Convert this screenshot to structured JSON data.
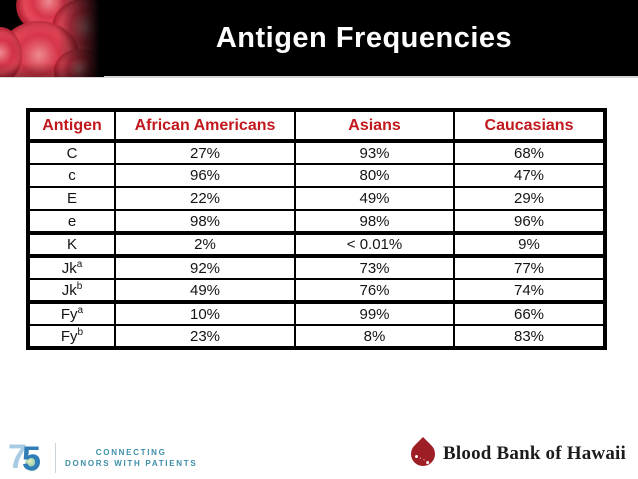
{
  "header": {
    "title": "Antigen Frequencies"
  },
  "table": {
    "columns": [
      "Antigen",
      "African Americans",
      "Asians",
      "Caucasians"
    ],
    "rows": [
      {
        "antigen": "C",
        "antigen_sup": "",
        "values": [
          "27%",
          "93%",
          "68%"
        ]
      },
      {
        "antigen": "c",
        "antigen_sup": "",
        "values": [
          "96%",
          "80%",
          "47%"
        ]
      },
      {
        "antigen": "E",
        "antigen_sup": "",
        "values": [
          "22%",
          "49%",
          "29%"
        ]
      },
      {
        "antigen": "e",
        "antigen_sup": "",
        "values": [
          "98%",
          "98%",
          "96%"
        ]
      },
      {
        "antigen": "K",
        "antigen_sup": "",
        "values": [
          "2%",
          "< 0.01%",
          "9%"
        ]
      },
      {
        "antigen": "Jk",
        "antigen_sup": "a",
        "values": [
          "92%",
          "73%",
          "77%"
        ]
      },
      {
        "antigen": "Jk",
        "antigen_sup": "b",
        "values": [
          "49%",
          "76%",
          "74%"
        ]
      },
      {
        "antigen": "Fy",
        "antigen_sup": "a",
        "values": [
          "10%",
          "99%",
          "66%"
        ]
      },
      {
        "antigen": "Fy",
        "antigen_sup": "b",
        "values": [
          "23%",
          "8%",
          "83%"
        ]
      }
    ]
  },
  "footer": {
    "anniversary_digit_7": "7",
    "anniversary_digit_5": "5",
    "tagline_line1": "CONNECTING",
    "tagline_line2": "DONORS WITH PATIENTS",
    "org_name": "Blood Bank of Hawaii"
  },
  "colors": {
    "header_text_red": "#C1181D",
    "bar_black": "#000000",
    "title_white": "#FFFFFF",
    "tagline_teal": "#3D8EA8",
    "drop_red": "#9E1E26",
    "digit7_blue": "#A6CBE3",
    "digit5_blue": "#2F7CB7"
  }
}
